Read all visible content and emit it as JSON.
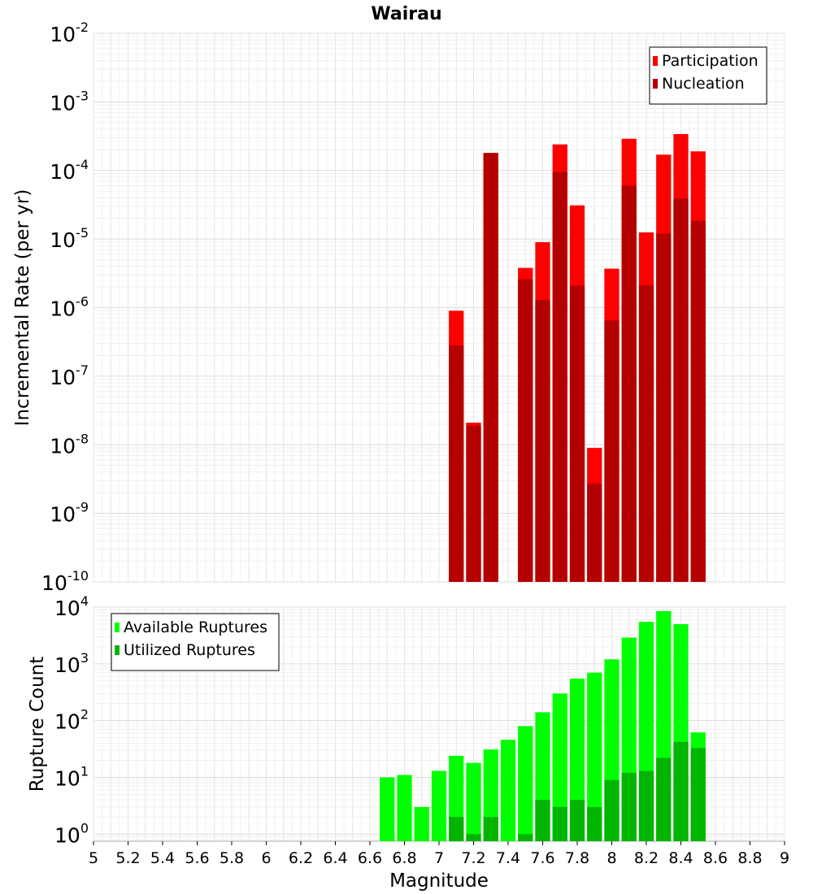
{
  "chart_data": [
    {
      "type": "bar",
      "title": "Wairau",
      "ylabel": "Incremental Rate (per yr)",
      "yscale": "log",
      "ylim": [
        1e-10,
        0.01
      ],
      "ytick_exponents": [
        "-10",
        "-9",
        "-8",
        "-7",
        "-6",
        "-5",
        "-4",
        "-3",
        "-2"
      ],
      "xlim": [
        5,
        9
      ],
      "bar_width": 0.1,
      "grid": true,
      "legend_position": "top-right",
      "series": [
        {
          "name": "Participation",
          "color": "#ff0000",
          "x": [
            7.1,
            7.2,
            7.3,
            7.5,
            7.6,
            7.7,
            7.8,
            7.9,
            8.0,
            8.1,
            8.2,
            8.3,
            8.4,
            8.5
          ],
          "values": [
            9e-07,
            2.1e-08,
            0.00018,
            3.8e-06,
            9e-06,
            0.00024,
            3.1e-05,
            9e-09,
            3.7e-06,
            0.00029,
            1.25e-05,
            0.00017,
            0.00034,
            0.00019
          ]
        },
        {
          "name": "Nucleation",
          "color": "#b40000",
          "x": [
            7.1,
            7.2,
            7.3,
            7.5,
            7.6,
            7.7,
            7.8,
            7.9,
            8.0,
            8.1,
            8.2,
            8.3,
            8.4,
            8.5
          ],
          "values": [
            2.8e-07,
            1.9e-08,
            0.00018,
            2.6e-06,
            1.3e-06,
            9.5e-05,
            2.1e-06,
            2.7e-09,
            6.5e-07,
            6e-05,
            2.1e-06,
            1.2e-05,
            3.9e-05,
            1.85e-05
          ]
        }
      ]
    },
    {
      "type": "bar",
      "xlabel": "Magnitude",
      "ylabel": "Rupture Count",
      "yscale": "log",
      "ylim": [
        0.75,
        10000
      ],
      "ytick_exponents": [
        "0",
        "1",
        "2",
        "3",
        "4"
      ],
      "xlim": [
        5,
        9
      ],
      "xticks": [
        "5",
        "5.2",
        "5.4",
        "5.6",
        "5.8",
        "6",
        "6.2",
        "6.4",
        "6.6",
        "6.8",
        "7",
        "7.2",
        "7.4",
        "7.6",
        "7.8",
        "8",
        "8.2",
        "8.4",
        "8.6",
        "8.8",
        "9"
      ],
      "bar_width": 0.1,
      "grid": true,
      "legend_position": "top-left",
      "series": [
        {
          "name": "Available Ruptures",
          "color": "#00ff00",
          "x": [
            6.7,
            6.8,
            6.9,
            7.0,
            7.1,
            7.2,
            7.3,
            7.4,
            7.5,
            7.6,
            7.7,
            7.8,
            7.9,
            8.0,
            8.1,
            8.2,
            8.3,
            8.4,
            8.5
          ],
          "values": [
            10,
            11,
            3,
            13,
            24,
            18,
            31,
            46,
            80,
            140,
            300,
            550,
            700,
            1200,
            2900,
            5500,
            8500,
            5000,
            62
          ]
        },
        {
          "name": "Utilized Ruptures",
          "color": "#00b400",
          "x": [
            7.1,
            7.2,
            7.3,
            7.5,
            7.6,
            7.7,
            7.8,
            7.9,
            8.0,
            8.1,
            8.2,
            8.3,
            8.4,
            8.5
          ],
          "values": [
            2,
            1,
            2,
            1,
            4,
            3,
            4,
            3,
            9,
            12,
            13,
            22,
            42,
            33
          ]
        }
      ]
    }
  ]
}
